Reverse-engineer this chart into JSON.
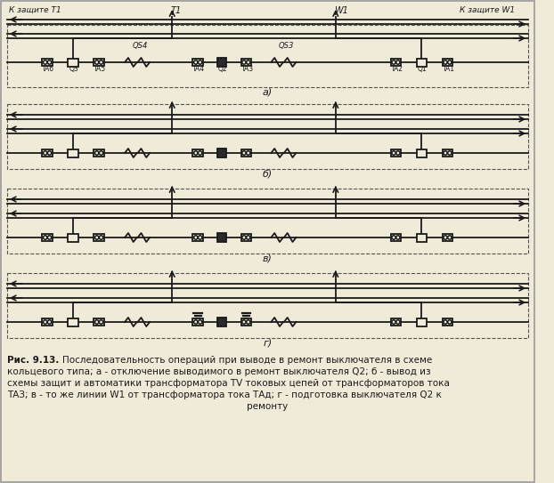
{
  "bg_color": "#f0ead8",
  "line_color": "#1a1a1a",
  "dashed_color": "#555555",
  "fill_dark": "#2a2a2a",
  "fill_white": "#f0ead8",
  "panel_labels": [
    "а)",
    "б)",
    "в)",
    "г)"
  ],
  "top_labels_a": [
    "К защите T1",
    "T1",
    "W1",
    "К защите W1"
  ],
  "qs_labels": [
    "QS4",
    "QS3"
  ],
  "comp_labels_a": [
    "TA6",
    "Q3",
    "TA5",
    "TA4",
    "Q2",
    "TA3",
    "TA2",
    "Q1",
    "TA1"
  ],
  "caption_bold": "Рис. 9.13.",
  "caption_rest": "Последовательность операций при выводе в ремонт выключателя в схеме",
  "caption_lines": [
    "кольцевого типа; а - отключение выводимого в ремонт выключателя Q2; б - вывод из",
    "схемы защит и автоматики трансформатора TV токовых цепей от трансформаторов тока",
    "ТАЗ; в - то же линии W1 от трансформатора тока ТАд; г - подготовка выключателя Q2 к",
    "ремонту"
  ]
}
